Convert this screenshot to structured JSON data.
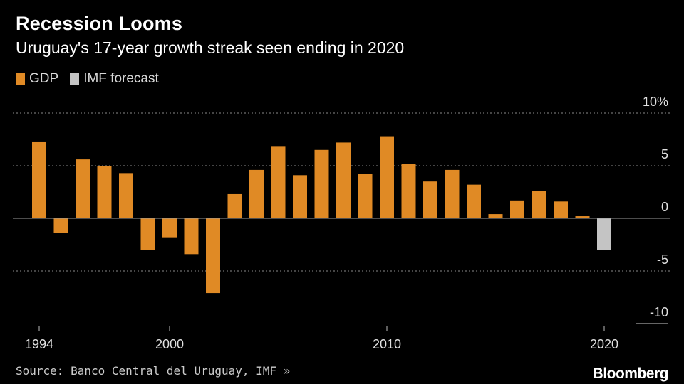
{
  "title": "Recession Looms",
  "subtitle": "Uruguay's 17-year growth streak seen ending in 2020",
  "legend": [
    {
      "label": "GDP",
      "color": "#e08a25"
    },
    {
      "label": "IMF forecast",
      "color": "#c4c4c4"
    }
  ],
  "source": "Source: Banco Central del Uruguay, IMF »",
  "brand": "Bloomberg",
  "chart_data": {
    "type": "bar",
    "title": "Recession Looms",
    "subtitle": "Uruguay's 17-year growth streak seen ending in 2020",
    "xlabel": "",
    "ylabel": "",
    "ylim": [
      -10,
      10
    ],
    "y_ticks": [
      {
        "value": 10,
        "label": "10%"
      },
      {
        "value": 5,
        "label": "5"
      },
      {
        "value": 0,
        "label": "0"
      },
      {
        "value": -5,
        "label": "-5"
      },
      {
        "value": -10,
        "label": "-10"
      }
    ],
    "x_ticks": [
      {
        "value": 1994,
        "label": "1994"
      },
      {
        "value": 2000,
        "label": "2000"
      },
      {
        "value": 2010,
        "label": "2010"
      },
      {
        "value": 2020,
        "label": "2020"
      }
    ],
    "grid": true,
    "series": [
      {
        "name": "GDP",
        "color": "#e08a25",
        "x": [
          1994,
          1995,
          1996,
          1997,
          1998,
          1999,
          2000,
          2001,
          2002,
          2003,
          2004,
          2005,
          2006,
          2007,
          2008,
          2009,
          2010,
          2011,
          2012,
          2013,
          2014,
          2015,
          2016,
          2017,
          2018,
          2019
        ],
        "values": [
          7.3,
          -1.4,
          5.6,
          5.0,
          4.3,
          -3.0,
          -1.8,
          -3.4,
          -7.1,
          2.3,
          4.6,
          6.8,
          4.1,
          6.5,
          7.2,
          4.2,
          7.8,
          5.2,
          3.5,
          4.6,
          3.2,
          0.4,
          1.7,
          2.6,
          1.6,
          0.2
        ]
      },
      {
        "name": "IMF forecast",
        "color": "#c4c4c4",
        "x": [
          2020
        ],
        "values": [
          -3.0
        ]
      }
    ]
  }
}
